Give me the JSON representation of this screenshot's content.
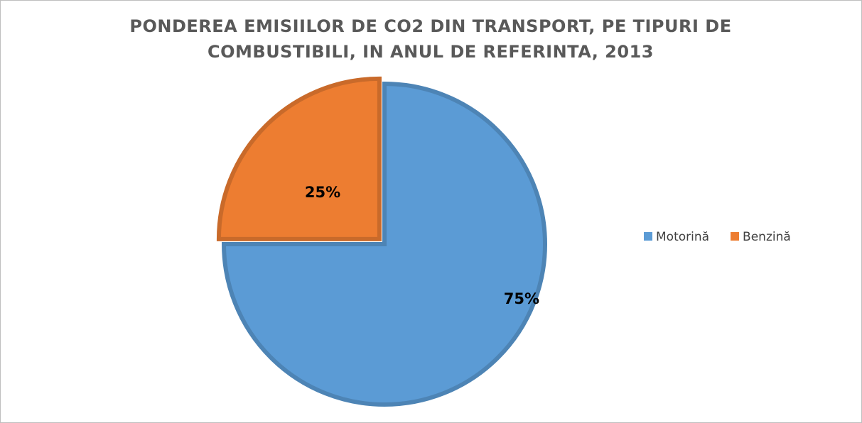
{
  "chart_data": {
    "type": "pie",
    "title": "PONDEREA EMISIILOR DE CO2 DIN TRANSPORT, PE TIPURI DE COMBUSTIBILI, IN ANUL DE REFERINTA, 2013",
    "categories": [
      "Motorină",
      "Benzină"
    ],
    "values": [
      75,
      25
    ],
    "value_labels": [
      "75%",
      "25%"
    ],
    "colors": [
      "#5b9bd5",
      "#ed7d31"
    ],
    "legend": "right"
  }
}
